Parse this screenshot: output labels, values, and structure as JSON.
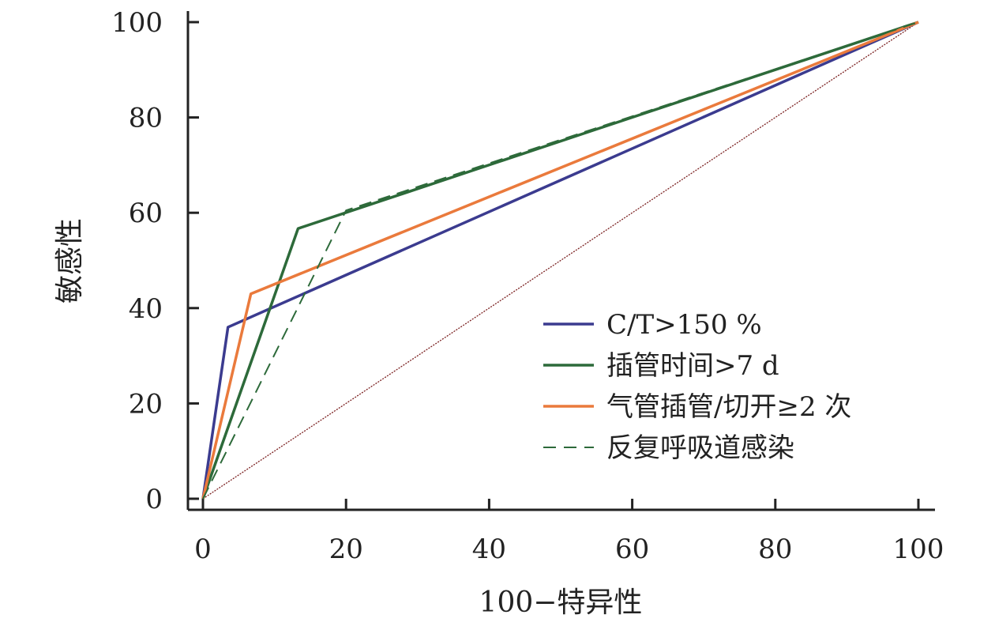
{
  "chart_data": {
    "type": "line",
    "title": "",
    "xlabel": "100−特异性",
    "ylabel": "敏感性",
    "xlim": [
      0,
      100
    ],
    "ylim": [
      0,
      100
    ],
    "xticks": [
      0,
      20,
      40,
      60,
      80,
      100
    ],
    "yticks": [
      0,
      20,
      40,
      60,
      80,
      100
    ],
    "grid": false,
    "legend_position": "bottom-right",
    "series": [
      {
        "name": "C/T>150 %",
        "color": "#3b3b8f",
        "dash": "solid",
        "x": [
          0,
          3.5,
          100
        ],
        "y": [
          0,
          36,
          100
        ]
      },
      {
        "name": "插管时间>7 d",
        "color": "#2d6a3a",
        "dash": "solid",
        "x": [
          0,
          13.3,
          100
        ],
        "y": [
          0,
          56.7,
          100
        ]
      },
      {
        "name": "气管插管/切开≥2 次",
        "color": "#ea7a3c",
        "dash": "solid",
        "x": [
          0,
          6.7,
          100
        ],
        "y": [
          0,
          43,
          100
        ]
      },
      {
        "name": "反复呼吸道感染",
        "color": "#2d6a3a",
        "dash": "dashed",
        "x": [
          0,
          20,
          100
        ],
        "y": [
          0,
          60.5,
          100
        ]
      }
    ],
    "reference_line": {
      "color": "#7a1f1f",
      "x": [
        0,
        100
      ],
      "y": [
        0,
        100
      ]
    }
  }
}
